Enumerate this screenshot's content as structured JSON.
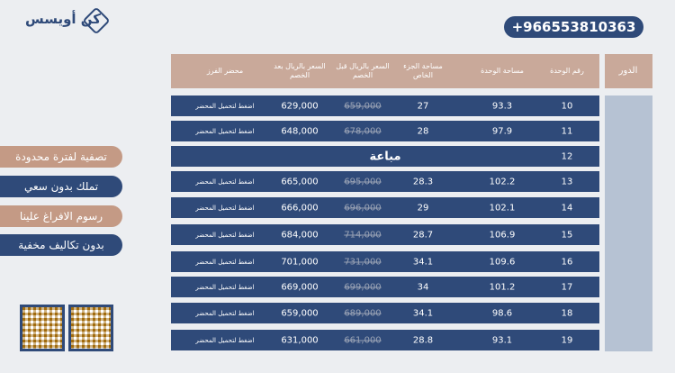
{
  "header": {
    "logo": "كن أويسس",
    "phone": "+966553810363"
  },
  "table": {
    "floor_header": "الدور",
    "columns": [
      "رقم الوحدة",
      "مساحة الوحدة",
      "مساحة الجزء الخاص",
      "السعر بالريال قبل الخصم",
      "السعر بالريال بعد الخصم",
      "محضر الفرز"
    ],
    "rows": [
      [
        "10",
        "93.3",
        "27",
        "659,000",
        "629,000",
        "اضغط لتحميل المحضر"
      ],
      [
        "11",
        "97.9",
        "28",
        "678,000",
        "648,000",
        "اضغط لتحميل المحضر"
      ],
      [
        "12",
        "مباعة"
      ],
      [
        "13",
        "102.2",
        "28.3",
        "695,000",
        "665,000",
        "اضغط لتحميل المحضر"
      ],
      [
        "14",
        "102.1",
        "29",
        "696,000",
        "666,000",
        "اضغط لتحميل المحضر"
      ],
      [
        "15",
        "106.9",
        "28.7",
        "714,000",
        "684,000",
        "اضغط لتحميل المحضر"
      ],
      [
        "16",
        "109.6",
        "34.1",
        "731,000",
        "701,000",
        "اضغط لتحميل المحضر"
      ],
      [
        "17",
        "101.2",
        "34",
        "699,000",
        "669,000",
        "اضغط لتحميل المحضر"
      ],
      [
        "18",
        "98.6",
        "34.1",
        "689,000",
        "659,000",
        "اضغط لتحميل المحضر"
      ],
      [
        "19",
        "93.1",
        "28.8",
        "661,000",
        "631,000",
        "اضغط لتحميل المحضر"
      ]
    ]
  },
  "features": [
    "تصفية لفترة محدودة",
    "تملك بدون سعي",
    "رسوم الافراغ علينا",
    "بدون تكاليف مخفية"
  ]
}
